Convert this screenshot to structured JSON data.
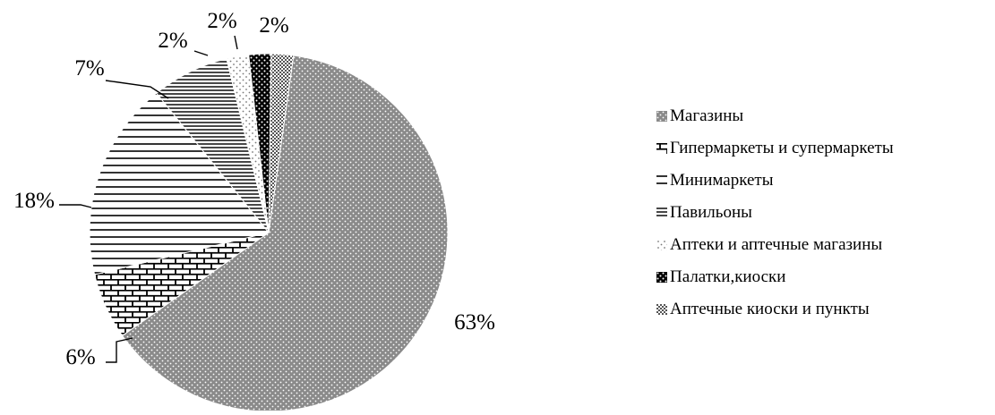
{
  "chart_data": {
    "type": "pie",
    "title": "",
    "slices": [
      {
        "label": "Магазины",
        "value": 63,
        "value_label": "63%",
        "pattern": "dots-gray"
      },
      {
        "label": "Гипермаркеты и супермаркеты",
        "value": 6,
        "value_label": "6%",
        "pattern": "bricks"
      },
      {
        "label": "Минимаркеты",
        "value": 18,
        "value_label": "18%",
        "pattern": "hlines-wide"
      },
      {
        "label": "Павильоны",
        "value": 7,
        "value_label": "7%",
        "pattern": "hlines-dense"
      },
      {
        "label": "Аптеки и аптечные магазины",
        "value": 2,
        "value_label": "2%",
        "pattern": "sparse-dots"
      },
      {
        "label": "Палатки,киоски",
        "value": 2,
        "value_label": "2%",
        "pattern": "black-dots"
      },
      {
        "label": "Аптечные киоски и пункты",
        "value": 2,
        "value_label": "2%",
        "pattern": "checker-gray"
      }
    ],
    "legend_position": "right",
    "colors": {
      "ink": "#000000",
      "gray": "#7a7a7a",
      "paper": "#ffffff"
    }
  }
}
